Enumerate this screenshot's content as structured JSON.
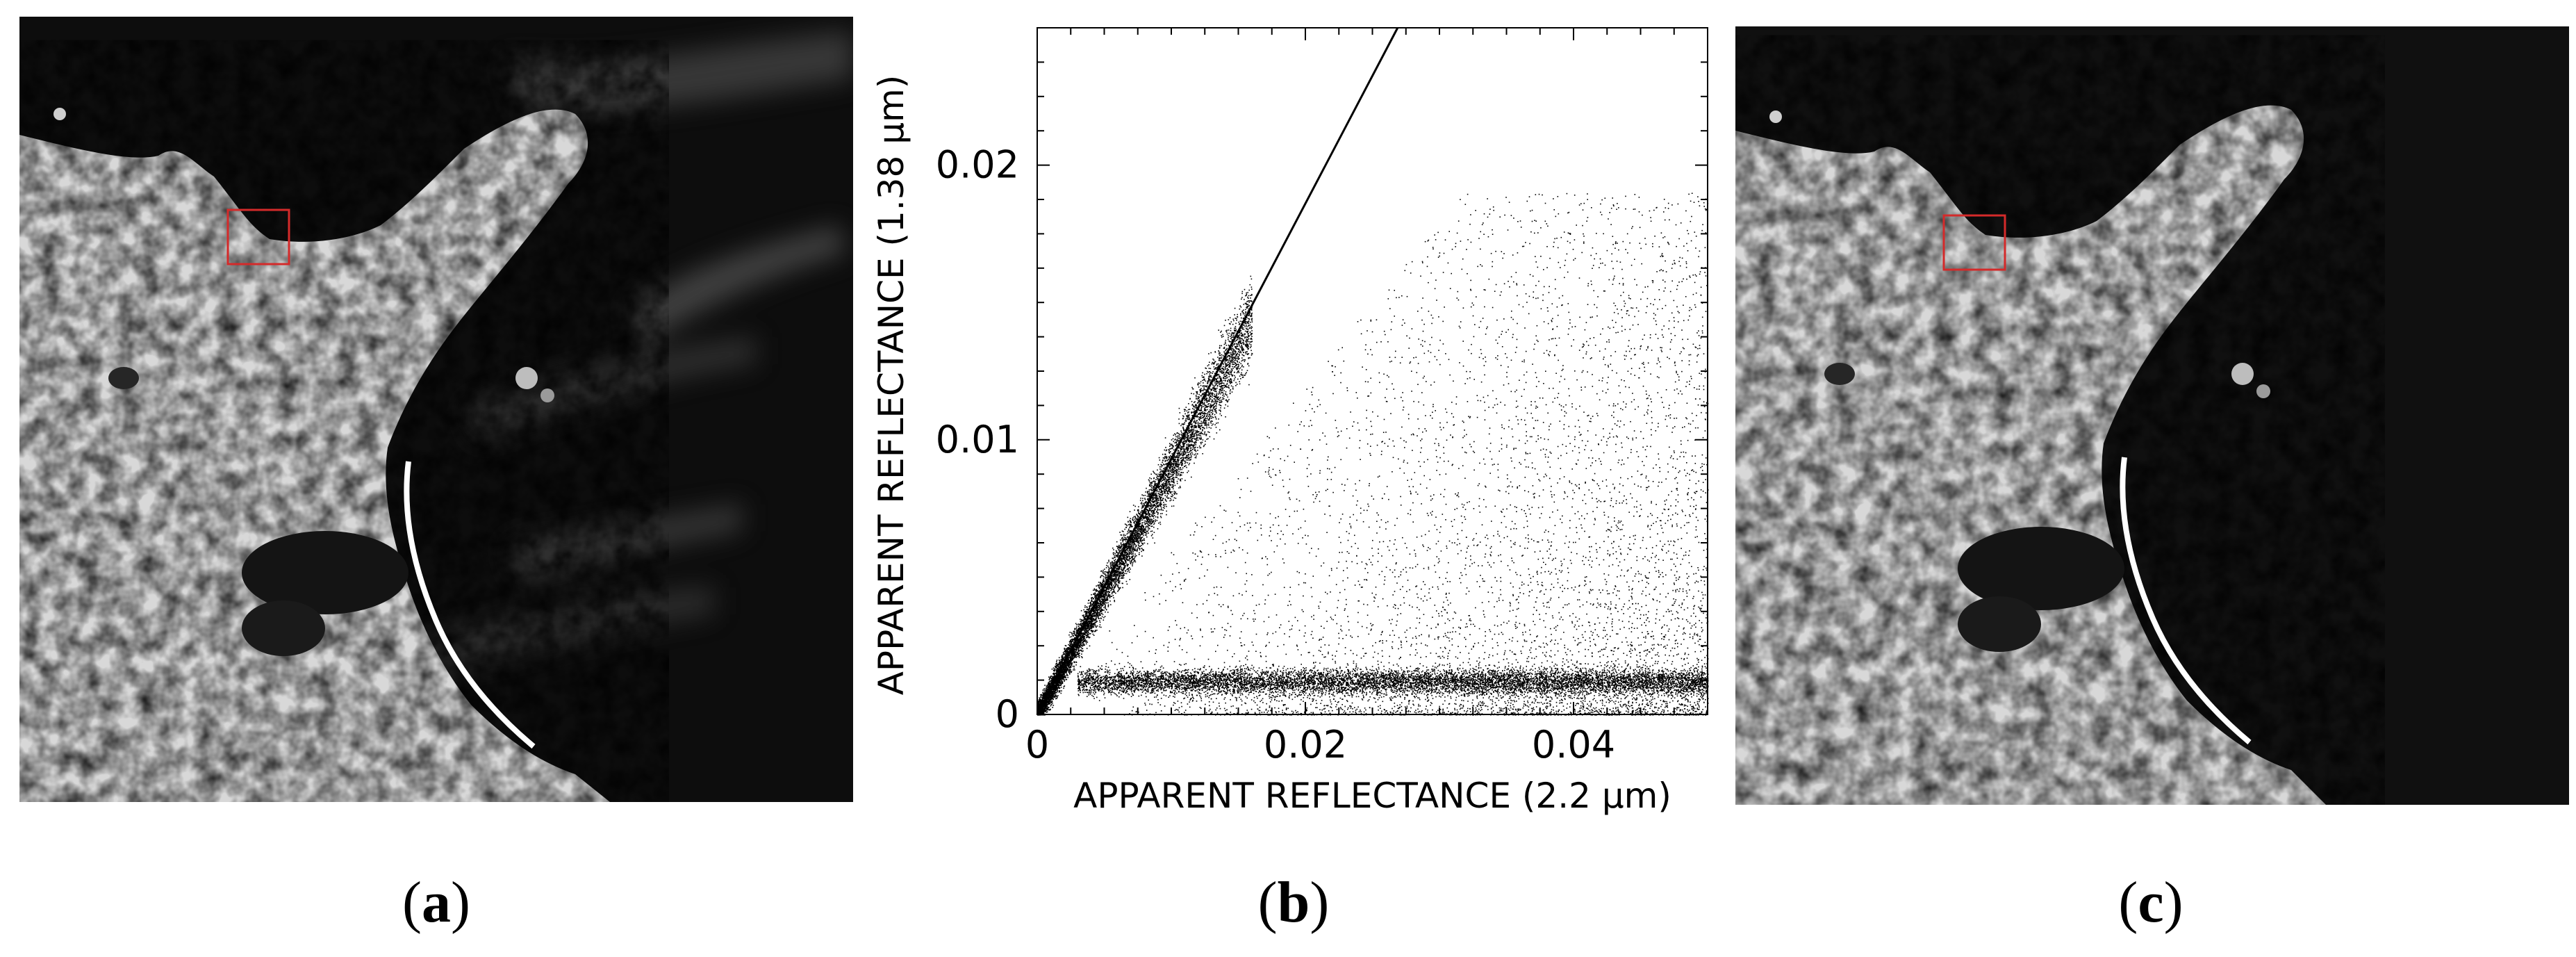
{
  "panels": [
    {
      "id": "a",
      "label_open": "(",
      "label_letter": "a",
      "label_close": ")"
    },
    {
      "id": "b",
      "label_open": "(",
      "label_letter": "b",
      "label_close": ")"
    },
    {
      "id": "c",
      "label_open": "(",
      "label_letter": "c",
      "label_close": ")"
    }
  ],
  "chart_data": {
    "type": "scatter",
    "xlabel": "APPARENT REFLECTANCE (2.2 µm)",
    "ylabel": "APPARENT REFLECTANCE (1.38 µm)",
    "xlim": [
      0,
      0.05
    ],
    "ylim": [
      0,
      0.025
    ],
    "x_ticks": [
      0,
      0.02,
      0.04
    ],
    "x_tick_labels": [
      "0",
      "0.02",
      "0.04"
    ],
    "y_ticks": [
      0,
      0.01,
      0.02
    ],
    "y_tick_labels": [
      "0",
      "0.01",
      "0.02"
    ],
    "reference_line": {
      "slope": 0.93,
      "intercept": 0
    },
    "point_clusters": [
      {
        "shape": "band",
        "x_range": [
          0,
          0.016
        ],
        "slope": 0.9,
        "spread": 0.0018,
        "density": "high"
      },
      {
        "shape": "horizontal",
        "x_range": [
          0.003,
          0.05
        ],
        "y_center": 0.0012,
        "spread": 0.0008,
        "density": "high"
      },
      {
        "shape": "wedge",
        "x_range": [
          0.005,
          0.05
        ],
        "y_max": 0.019,
        "density": "low"
      }
    ],
    "grid": false
  },
  "colors": {
    "highlight_box": "#d42a2a",
    "points": "#000000"
  }
}
